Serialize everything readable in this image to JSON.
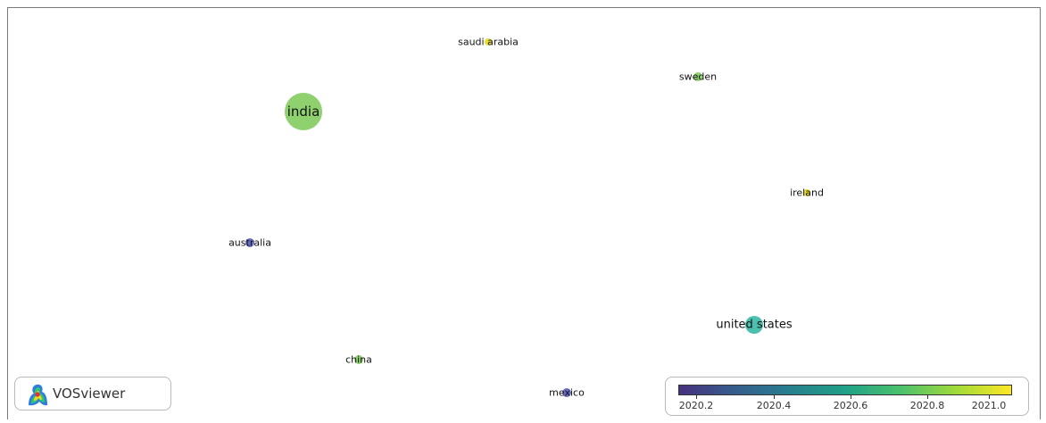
{
  "network": {
    "nodes": [
      {
        "id": "india",
        "label": "india",
        "year": 2020.75,
        "color": "#8fd16f"
      },
      {
        "id": "saudi-arabia",
        "label": "saudi arabia",
        "year": 2021.0,
        "color": "#e6e033"
      },
      {
        "id": "sweden",
        "label": "sweden",
        "year": 2020.85,
        "color": "#8fd16f"
      },
      {
        "id": "ireland",
        "label": "ireland",
        "year": 2021.0,
        "color": "#e6dd2a"
      },
      {
        "id": "australia",
        "label": "australia",
        "year": 2020.15,
        "color": "#6a6cc0"
      },
      {
        "id": "united-states",
        "label": "united states",
        "year": 2020.5,
        "color": "#4dbfae"
      },
      {
        "id": "china",
        "label": "china",
        "year": 2020.8,
        "color": "#8fd16f"
      },
      {
        "id": "mexico",
        "label": "mexico",
        "year": 2020.15,
        "color": "#6a6cc0"
      }
    ]
  },
  "branding": {
    "name": "VOSviewer"
  },
  "legend": {
    "ticks": [
      "2020.2",
      "2020.4",
      "2020.6",
      "2020.8",
      "2021.0"
    ]
  }
}
